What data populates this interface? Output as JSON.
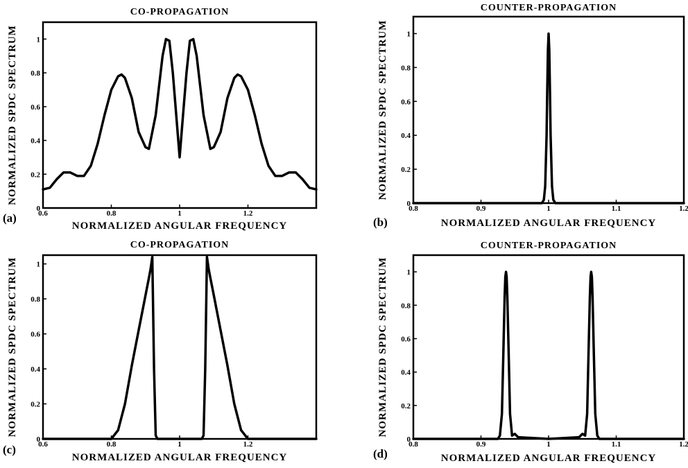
{
  "figure": {
    "accent_color": "#000000",
    "background_color": "#ffffff"
  },
  "chart_data": [
    {
      "id": "a",
      "panel_label": "(a)",
      "type": "line",
      "title": "CO-PROPAGATION",
      "xlabel": "NORMALIZED ANGULAR FREQUENCY",
      "ylabel": "NORMALIZED SPDC SPECTRUM",
      "xlim": [
        0.6,
        1.4
      ],
      "ylim": [
        0,
        1.1
      ],
      "xticks": [
        0.6,
        0.8,
        1.0,
        1.2
      ],
      "xtick_labels": [
        "0.6",
        "0.8",
        "1",
        "1.2"
      ],
      "yticks": [
        0,
        0.2,
        0.4,
        0.6,
        0.8,
        1.0
      ],
      "ytick_labels": [
        "0",
        "0.2",
        "0.4",
        "0.6",
        "0.8",
        "1"
      ],
      "grid": false,
      "series": [
        {
          "x": [
            0.6,
            0.62,
            0.64,
            0.66,
            0.68,
            0.7,
            0.72,
            0.74,
            0.76,
            0.78,
            0.8,
            0.82,
            0.83,
            0.84,
            0.86,
            0.88,
            0.9,
            0.91,
            0.93,
            0.95,
            0.96,
            0.97,
            0.98,
            0.99,
            1.0,
            1.01,
            1.02,
            1.03,
            1.04,
            1.05,
            1.07,
            1.09,
            1.1,
            1.12,
            1.14,
            1.16,
            1.17,
            1.18,
            1.2,
            1.22,
            1.24,
            1.26,
            1.28,
            1.3,
            1.32,
            1.34,
            1.36,
            1.38,
            1.4
          ],
          "y": [
            0.11,
            0.12,
            0.17,
            0.21,
            0.21,
            0.19,
            0.19,
            0.25,
            0.38,
            0.55,
            0.7,
            0.78,
            0.79,
            0.77,
            0.65,
            0.45,
            0.36,
            0.35,
            0.55,
            0.9,
            1.0,
            0.99,
            0.8,
            0.55,
            0.3,
            0.55,
            0.8,
            0.99,
            1.0,
            0.9,
            0.55,
            0.35,
            0.36,
            0.45,
            0.65,
            0.77,
            0.79,
            0.78,
            0.7,
            0.55,
            0.38,
            0.25,
            0.19,
            0.19,
            0.21,
            0.21,
            0.17,
            0.12,
            0.11
          ]
        }
      ]
    },
    {
      "id": "b",
      "panel_label": "(b)",
      "type": "line",
      "title": "COUNTER-PROPAGATION",
      "xlabel": "NORMALIZED ANGULAR FREQUENCY",
      "ylabel": "NORMALIZED SPDC SPECTRUM",
      "xlim": [
        0.8,
        1.2
      ],
      "ylim": [
        0,
        1.1
      ],
      "xticks": [
        0.8,
        0.9,
        1.0,
        1.1,
        1.2
      ],
      "xtick_labels": [
        "0.8",
        "0.9",
        "1",
        "1.1",
        "1.2"
      ],
      "yticks": [
        0,
        0.2,
        0.4,
        0.6,
        0.8,
        1.0
      ],
      "ytick_labels": [
        "0",
        "0.2",
        "0.4",
        "0.6",
        "0.8",
        "1"
      ],
      "grid": false,
      "series": [
        {
          "x": [
            0.8,
            0.99,
            0.993,
            0.995,
            0.997,
            0.998,
            0.999,
            1.0,
            1.001,
            1.002,
            1.003,
            1.005,
            1.007,
            1.01,
            1.2
          ],
          "y": [
            0,
            0,
            0.02,
            0.1,
            0.4,
            0.65,
            0.9,
            1.0,
            0.9,
            0.65,
            0.4,
            0.1,
            0.02,
            0,
            0
          ]
        }
      ]
    },
    {
      "id": "c",
      "panel_label": "(c)",
      "type": "line",
      "title": "CO-PROPAGATION",
      "xlabel": "NORMALIZED ANGULAR FREQUENCY",
      "ylabel": "NORMALIZED SPDC SPECTRUM",
      "xlim": [
        0.6,
        1.4
      ],
      "ylim": [
        0,
        1.05
      ],
      "xticks": [
        0.6,
        0.8,
        1.0,
        1.2
      ],
      "xtick_labels": [
        "0.6",
        "0.8",
        "1",
        "1.2"
      ],
      "yticks": [
        0,
        0.2,
        0.4,
        0.6,
        0.8,
        1.0
      ],
      "ytick_labels": [
        "0",
        "0.2",
        "0.4",
        "0.6",
        "0.8",
        "1"
      ],
      "grid": false,
      "series": [
        {
          "x": [
            0.6,
            0.8,
            0.82,
            0.84,
            0.86,
            0.88,
            0.9,
            0.91,
            0.915,
            0.92,
            0.925,
            0.93,
            0.935,
            1.065,
            1.07,
            1.075,
            1.08,
            1.085,
            1.09,
            1.1,
            1.12,
            1.14,
            1.16,
            1.18,
            1.2,
            1.4
          ],
          "y": [
            0,
            0,
            0.05,
            0.2,
            0.42,
            0.62,
            0.82,
            0.92,
            0.97,
            1.04,
            0.4,
            0.02,
            0,
            0,
            0.02,
            0.4,
            1.04,
            0.97,
            0.92,
            0.82,
            0.62,
            0.42,
            0.2,
            0.05,
            0,
            0
          ]
        }
      ]
    },
    {
      "id": "d",
      "panel_label": "(d)",
      "type": "line",
      "title": "COUNTER-PROPAGATION",
      "xlabel": "NORMALIZED ANGULAR FREQUENCY",
      "ylabel": "NORMALIZED SPDC SPECTRUM",
      "xlim": [
        0.8,
        1.2
      ],
      "ylim": [
        0,
        1.1
      ],
      "xticks": [
        0.8,
        0.9,
        1.0,
        1.1,
        1.2
      ],
      "xtick_labels": [
        "0.8",
        "0.9",
        "1",
        "1.1",
        "1.2"
      ],
      "yticks": [
        0,
        0.2,
        0.4,
        0.6,
        0.8,
        1.0
      ],
      "ytick_labels": [
        "0",
        "0.2",
        "0.4",
        "0.6",
        "0.8",
        "1"
      ],
      "grid": false,
      "series": [
        {
          "x": [
            0.8,
            0.925,
            0.928,
            0.931,
            0.933,
            0.935,
            0.936,
            0.937,
            0.938,
            0.939,
            0.941,
            0.943,
            0.946,
            0.95,
            0.955,
            1.0,
            1.045,
            1.05,
            1.054,
            1.057,
            1.059,
            1.061,
            1.062,
            1.063,
            1.064,
            1.065,
            1.067,
            1.069,
            1.072,
            1.075,
            1.2
          ],
          "y": [
            0,
            0,
            0.02,
            0.15,
            0.5,
            0.85,
            0.97,
            1.0,
            0.97,
            0.85,
            0.5,
            0.15,
            0.02,
            0.03,
            0.01,
            0,
            0.01,
            0.03,
            0.02,
            0.15,
            0.5,
            0.85,
            0.97,
            1.0,
            0.97,
            0.85,
            0.5,
            0.15,
            0.02,
            0,
            0
          ]
        }
      ]
    }
  ]
}
